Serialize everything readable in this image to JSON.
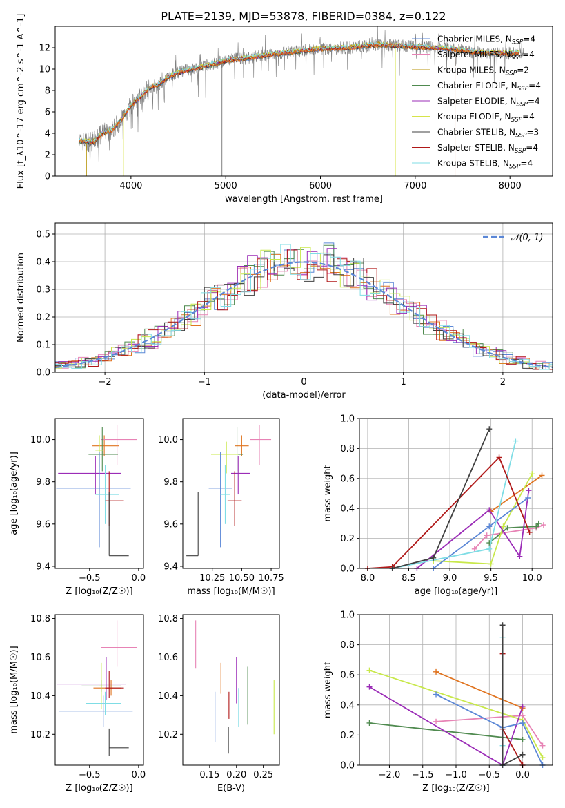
{
  "figure": {
    "title": "PLATE=2139, MJD=53878, FIBERID=0384, z=0.122"
  },
  "colors": {
    "Chabrier MILES": "#5b87d6",
    "Salpeter MILES": "#e783b5",
    "Kroupa MILES": "#b8960c",
    "Chabrier ELODIE": "#4f8a4f",
    "Salpeter ELODIE": "#9b2cb7",
    "Kroupa ELODIE": "#d6e44a",
    "Chabrier STELIB": "#404040",
    "Salpeter STELIB": "#b01818",
    "Kroupa STELIB": "#7fdde5",
    "orange": "#e07420",
    "lime": "#c8e84a",
    "data_gray": "#808080"
  },
  "chart_data": [
    {
      "id": "spectrum",
      "type": "line",
      "xlabel": "wavelength [Angstrom, rest frame]",
      "ylabel": "Flux [f_λ10^-17 erg cm^-2 s^-1 A^-1]",
      "xlim": [
        3200,
        8450
      ],
      "ylim": [
        0,
        14
      ],
      "xticks": [
        4000,
        5000,
        6000,
        7000,
        8000
      ],
      "yticks": [
        0,
        2,
        4,
        6,
        8,
        10,
        12
      ],
      "legend_position": "right",
      "legend": [
        {
          "label": "Chabrier MILES, N",
          "sub": "SSP",
          "suffix": "=4",
          "color": "Chabrier MILES"
        },
        {
          "label": "Salpeter MILES, N",
          "sub": "SSP",
          "suffix": "=4",
          "color": "Salpeter MILES"
        },
        {
          "label": "Kroupa MILES, N",
          "sub": "SSP",
          "suffix": "=2",
          "color": "Kroupa MILES"
        },
        {
          "label": "Chabrier ELODIE, N",
          "sub": "SSP",
          "suffix": "=4",
          "color": "Chabrier ELODIE"
        },
        {
          "label": "Salpeter ELODIE, N",
          "sub": "SSP",
          "suffix": "=4",
          "color": "Salpeter ELODIE"
        },
        {
          "label": "Kroupa ELODIE, N",
          "sub": "SSP",
          "suffix": "=4",
          "color": "Kroupa ELODIE"
        },
        {
          "label": "Chabrier STELIB, N",
          "sub": "SSP",
          "suffix": "=3",
          "color": "Chabrier STELIB"
        },
        {
          "label": "Salpeter STELIB, N",
          "sub": "SSP",
          "suffix": "=4",
          "color": "Salpeter STELIB"
        },
        {
          "label": "Kroupa STELIB, N",
          "sub": "SSP",
          "suffix": "=4",
          "color": "Kroupa STELIB"
        }
      ],
      "continuum": {
        "x": [
          3450,
          3600,
          3700,
          3800,
          3900,
          4000,
          4100,
          4200,
          4300,
          4400,
          4500,
          4600,
          4800,
          5000,
          5200,
          5500,
          5800,
          6000,
          6300,
          6600,
          6800,
          7000,
          7200,
          7400,
          7600,
          7800,
          8100
        ],
        "y": [
          3.3,
          3.2,
          4.0,
          4.3,
          5.3,
          6.6,
          7.4,
          8.3,
          8.6,
          9.3,
          9.7,
          9.9,
          10.3,
          10.8,
          11.0,
          11.4,
          11.7,
          11.9,
          12.0,
          12.3,
          12.2,
          12.1,
          12.0,
          11.9,
          11.6,
          11.5,
          11.5
        ]
      }
    },
    {
      "id": "residuals",
      "type": "bar",
      "xlabel": "(data-model)/error",
      "ylabel": "Normed distribution",
      "xlim": [
        -2.5,
        2.5
      ],
      "ylim": [
        0,
        0.54
      ],
      "xticks": [
        -2,
        -1,
        0,
        1,
        2
      ],
      "yticks": [
        0.0,
        0.1,
        0.2,
        0.3,
        0.4,
        0.5
      ],
      "grid": true,
      "legend_position": "top-right",
      "legend_label": "𝒩(0, 1)",
      "bin_width": 0.1
    },
    {
      "id": "age-vs-Z",
      "type": "scatter",
      "xlabel": "Z [log₁₀(Z/Z☉)]",
      "ylabel": "age  [log₁₀(age/yr)]",
      "xlim": [
        -0.85,
        0.05
      ],
      "ylim": [
        9.39,
        10.1
      ],
      "xticks": [
        -0.5,
        0.0
      ],
      "yticks": [
        9.4,
        9.6,
        9.8,
        10.0
      ],
      "points": [
        {
          "c": "orange",
          "x": -0.35,
          "y": 9.97,
          "xe": [
            0.12,
            0.15
          ],
          "ye": [
            0.05,
            0.05
          ]
        },
        {
          "c": "Salpeter MILES",
          "x": -0.22,
          "y": 10.0,
          "xe": [
            0.16,
            0.2
          ],
          "ye": [
            0.12,
            0.07
          ]
        },
        {
          "c": "Chabrier ELODIE",
          "x": -0.37,
          "y": 9.93,
          "xe": [
            0.14,
            0.16
          ],
          "ye": [
            0.08,
            0.13
          ]
        },
        {
          "c": "lime",
          "x": -0.4,
          "y": 9.95,
          "xe": [
            0.04,
            0.04
          ],
          "ye": [
            0.08,
            0.07
          ]
        },
        {
          "c": "Salpeter ELODIE",
          "x": -0.44,
          "y": 9.84,
          "xe": [
            0.38,
            0.26
          ],
          "ye": [
            0.1,
            0.08
          ]
        },
        {
          "c": "Chabrier MILES",
          "x": -0.4,
          "y": 9.77,
          "xe": [
            0.44,
            0.32
          ],
          "ye": [
            0.28,
            0.17
          ]
        },
        {
          "c": "Kroupa STELIB",
          "x": -0.34,
          "y": 9.74,
          "xe": [
            0.1,
            0.14
          ],
          "ye": [
            0.14,
            0.14
          ]
        },
        {
          "c": "Salpeter STELIB",
          "x": -0.3,
          "y": 9.71,
          "xe": [
            0.04,
            0.15
          ],
          "ye": [
            0.12,
            0.14
          ]
        },
        {
          "c": "Chabrier STELIB",
          "x": -0.3,
          "y": 9.45,
          "xe": [
            0.0,
            0.2
          ],
          "ye": [
            0.0,
            0.3
          ]
        }
      ]
    },
    {
      "id": "age-vs-mass",
      "type": "scatter",
      "xlabel": "mass [log₁₀(M/M☉)]",
      "ylabel": "",
      "xlim": [
        10.0,
        10.82
      ],
      "ylim": [
        9.39,
        10.1
      ],
      "xticks": [
        10.25,
        10.5,
        10.75
      ],
      "yticks": [
        9.4,
        9.6,
        9.8,
        10.0
      ],
      "points": [
        {
          "c": "orange",
          "x": 10.5,
          "y": 9.97,
          "xe": [
            0.06,
            0.06
          ],
          "ye": [
            0.05,
            0.05
          ]
        },
        {
          "c": "Salpeter MILES",
          "x": 10.65,
          "y": 10.0,
          "xe": [
            0.08,
            0.1
          ],
          "ye": [
            0.12,
            0.07
          ]
        },
        {
          "c": "Chabrier ELODIE",
          "x": 10.46,
          "y": 9.93,
          "xe": [
            0.05,
            0.05
          ],
          "ye": [
            0.08,
            0.13
          ]
        },
        {
          "c": "lime",
          "x": 10.37,
          "y": 9.93,
          "xe": [
            0.13,
            0.1
          ],
          "ye": [
            0.09,
            0.06
          ]
        },
        {
          "c": "Salpeter ELODIE",
          "x": 10.47,
          "y": 9.84,
          "xe": [
            0.06,
            0.1
          ],
          "ye": [
            0.1,
            0.08
          ]
        },
        {
          "c": "Chabrier MILES",
          "x": 10.32,
          "y": 9.77,
          "xe": [
            0.1,
            0.1
          ],
          "ye": [
            0.28,
            0.17
          ]
        },
        {
          "c": "Kroupa STELIB",
          "x": 10.36,
          "y": 9.74,
          "xe": [
            0.04,
            0.04
          ],
          "ye": [
            0.14,
            0.14
          ]
        },
        {
          "c": "Salpeter STELIB",
          "x": 10.44,
          "y": 9.71,
          "xe": [
            0.06,
            0.06
          ],
          "ye": [
            0.12,
            0.14
          ]
        },
        {
          "c": "Chabrier STELIB",
          "x": 10.13,
          "y": 9.45,
          "xe": [
            0.1,
            0.0
          ],
          "ye": [
            0.0,
            0.3
          ]
        }
      ]
    },
    {
      "id": "massweight-vs-age",
      "type": "line",
      "xlabel": "age  [log₁₀(age/yr)]",
      "ylabel": "mass weight",
      "xlim": [
        7.9,
        10.25
      ],
      "ylim": [
        0,
        1
      ],
      "xticks": [
        8.0,
        8.5,
        9.0,
        9.5,
        10.0
      ],
      "yticks": [
        0.0,
        0.2,
        0.4,
        0.6,
        0.8,
        1.0
      ],
      "grid": true,
      "series": [
        {
          "c": "orange",
          "x": [
            9.5,
            10.12
          ],
          "y": [
            0.38,
            0.62
          ]
        },
        {
          "c": "Salpeter MILES",
          "x": [
            9.3,
            9.45,
            10.05,
            10.14
          ],
          "y": [
            0.13,
            0.22,
            0.27,
            0.29
          ]
        },
        {
          "c": "Chabrier ELODIE",
          "x": [
            9.48,
            9.7,
            10.05,
            10.08
          ],
          "y": [
            0.17,
            0.27,
            0.28,
            0.3
          ]
        },
        {
          "c": "lime",
          "x": [
            8.8,
            9.5,
            9.65,
            10.0
          ],
          "y": [
            0.05,
            0.03,
            0.28,
            0.63
          ]
        },
        {
          "c": "Salpeter ELODIE",
          "x": [
            8.6,
            9.48,
            9.85,
            9.96
          ],
          "y": [
            0.0,
            0.39,
            0.08,
            0.52
          ]
        },
        {
          "c": "Chabrier MILES",
          "x": [
            8.3,
            8.8,
            9.48,
            9.95
          ],
          "y": [
            0.0,
            0.0,
            0.28,
            0.47
          ]
        },
        {
          "c": "Kroupa STELIB",
          "x": [
            8.3,
            9.48,
            9.8
          ],
          "y": [
            0.0,
            0.13,
            0.85
          ]
        },
        {
          "c": "Salpeter STELIB",
          "x": [
            8.0,
            8.3,
            9.6,
            9.97
          ],
          "y": [
            0.0,
            0.01,
            0.74,
            0.24
          ]
        },
        {
          "c": "Chabrier STELIB",
          "x": [
            8.3,
            8.8,
            9.48
          ],
          "y": [
            0.0,
            0.07,
            0.93
          ]
        }
      ]
    },
    {
      "id": "mass-vs-Z",
      "type": "scatter",
      "xlabel": "Z [log₁₀(Z/Z☉)]",
      "ylabel": "mass [log₁₀(M/M☉)]",
      "xlim": [
        -0.85,
        0.05
      ],
      "ylim": [
        10.04,
        10.82
      ],
      "xticks": [
        -0.5,
        0.0
      ],
      "yticks": [
        10.2,
        10.4,
        10.6,
        10.8
      ],
      "points": [
        {
          "c": "orange",
          "x": -0.28,
          "y": 10.44,
          "xe": [
            0.18,
            0.1
          ],
          "ye": [
            0.04,
            0.04
          ]
        },
        {
          "c": "Salpeter MILES",
          "x": -0.22,
          "y": 10.65,
          "xe": [
            0.16,
            0.2
          ],
          "ye": [
            0.1,
            0.14
          ]
        },
        {
          "c": "Chabrier ELODIE",
          "x": -0.38,
          "y": 10.45,
          "xe": [
            0.2,
            0.2
          ],
          "ye": [
            0.03,
            0.03
          ]
        },
        {
          "c": "lime",
          "x": -0.38,
          "y": 10.45,
          "xe": [
            0.02,
            0.02
          ],
          "ye": [
            0.12,
            0.12
          ]
        },
        {
          "c": "Salpeter ELODIE",
          "x": -0.33,
          "y": 10.46,
          "xe": [
            0.5,
            0.2
          ],
          "ye": [
            0.08,
            0.14
          ]
        },
        {
          "c": "Chabrier MILES",
          "x": -0.36,
          "y": 10.32,
          "xe": [
            0.45,
            0.3
          ],
          "ye": [
            0.08,
            0.08
          ]
        },
        {
          "c": "Kroupa STELIB",
          "x": -0.34,
          "y": 10.36,
          "xe": [
            0.2,
            0.16
          ],
          "ye": [
            0.06,
            0.06
          ]
        },
        {
          "c": "Salpeter STELIB",
          "x": -0.3,
          "y": 10.44,
          "xe": [
            0.04,
            0.15
          ],
          "ye": [
            0.05,
            0.09
          ]
        },
        {
          "c": "Chabrier STELIB",
          "x": -0.3,
          "y": 10.13,
          "xe": [
            0.0,
            0.2
          ],
          "ye": [
            0.04,
            0.1
          ]
        }
      ]
    },
    {
      "id": "mass-vs-ebv",
      "type": "scatter",
      "xlabel": "E(B-V)",
      "ylabel": "",
      "xlim": [
        0.1,
        0.28
      ],
      "ylim": [
        10.04,
        10.82
      ],
      "xticks": [
        0.15,
        0.2,
        0.25
      ],
      "yticks": [
        10.2,
        10.4,
        10.6,
        10.8
      ],
      "points": [
        {
          "c": "Salpeter MILES",
          "x": 0.124,
          "y": 10.67,
          "ye": [
            0.13,
            0.12
          ]
        },
        {
          "c": "Chabrier MILES",
          "x": 0.16,
          "y": 10.29,
          "ye": [
            0.13,
            0.13
          ]
        },
        {
          "c": "orange",
          "x": 0.171,
          "y": 10.49,
          "ye": [
            0.08,
            0.08
          ]
        },
        {
          "c": "Chabrier STELIB",
          "x": 0.185,
          "y": 10.17,
          "ye": [
            0.07,
            0.07
          ]
        },
        {
          "c": "Salpeter STELIB",
          "x": 0.186,
          "y": 10.35,
          "ye": [
            0.07,
            0.07
          ]
        },
        {
          "c": "Salpeter ELODIE",
          "x": 0.2,
          "y": 10.48,
          "ye": [
            0.12,
            0.12
          ]
        },
        {
          "c": "Kroupa STELIB",
          "x": 0.204,
          "y": 10.34,
          "ye": [
            0.1,
            0.1
          ]
        },
        {
          "c": "Chabrier ELODIE",
          "x": 0.221,
          "y": 10.4,
          "ye": [
            0.15,
            0.15
          ]
        },
        {
          "c": "lime",
          "x": 0.27,
          "y": 10.34,
          "ye": [
            0.14,
            0.14
          ]
        }
      ]
    },
    {
      "id": "massweight-vs-Z",
      "type": "line",
      "xlabel": "Z [log₁₀(Z/Z☉)]",
      "ylabel": "mass weight",
      "xlim": [
        -2.45,
        0.45
      ],
      "ylim": [
        0,
        1
      ],
      "xticks": [
        -2.0,
        -1.5,
        -1.0,
        -0.5,
        0.0
      ],
      "yticks": [
        0.0,
        0.2,
        0.4,
        0.6,
        0.8,
        1.0
      ],
      "grid": true,
      "series": [
        {
          "c": "orange",
          "x": [
            -1.3,
            0.0
          ],
          "y": [
            0.62,
            0.38
          ]
        },
        {
          "c": "Salpeter MILES",
          "x": [
            -1.3,
            0.0,
            0.3
          ],
          "y": [
            0.29,
            0.33,
            0.13
          ]
        },
        {
          "c": "Chabrier ELODIE",
          "x": [
            -2.3,
            0.0
          ],
          "y": [
            0.28,
            0.17
          ]
        },
        {
          "c": "lime",
          "x": [
            -2.3,
            0.0,
            0.3
          ],
          "y": [
            0.63,
            0.3,
            0.05
          ]
        },
        {
          "c": "Salpeter ELODIE",
          "x": [
            -2.3,
            -0.3,
            0.0
          ],
          "y": [
            0.52,
            0.0,
            0.39
          ]
        },
        {
          "c": "Chabrier MILES",
          "x": [
            -1.3,
            -0.3,
            0.0,
            0.3
          ],
          "y": [
            0.47,
            0.25,
            0.28,
            0.0
          ]
        },
        {
          "c": "Kroupa STELIB",
          "x": [
            -0.3,
            -0.3,
            -0.3
          ],
          "y": [
            0.85,
            0.13,
            0.0
          ]
        },
        {
          "c": "Salpeter STELIB",
          "x": [
            -0.3,
            -0.3,
            0.0
          ],
          "y": [
            0.74,
            0.24,
            0.0
          ]
        },
        {
          "c": "Chabrier STELIB",
          "x": [
            -0.3,
            -0.3,
            0.0
          ],
          "y": [
            0.93,
            0.0,
            0.07
          ]
        }
      ]
    }
  ]
}
